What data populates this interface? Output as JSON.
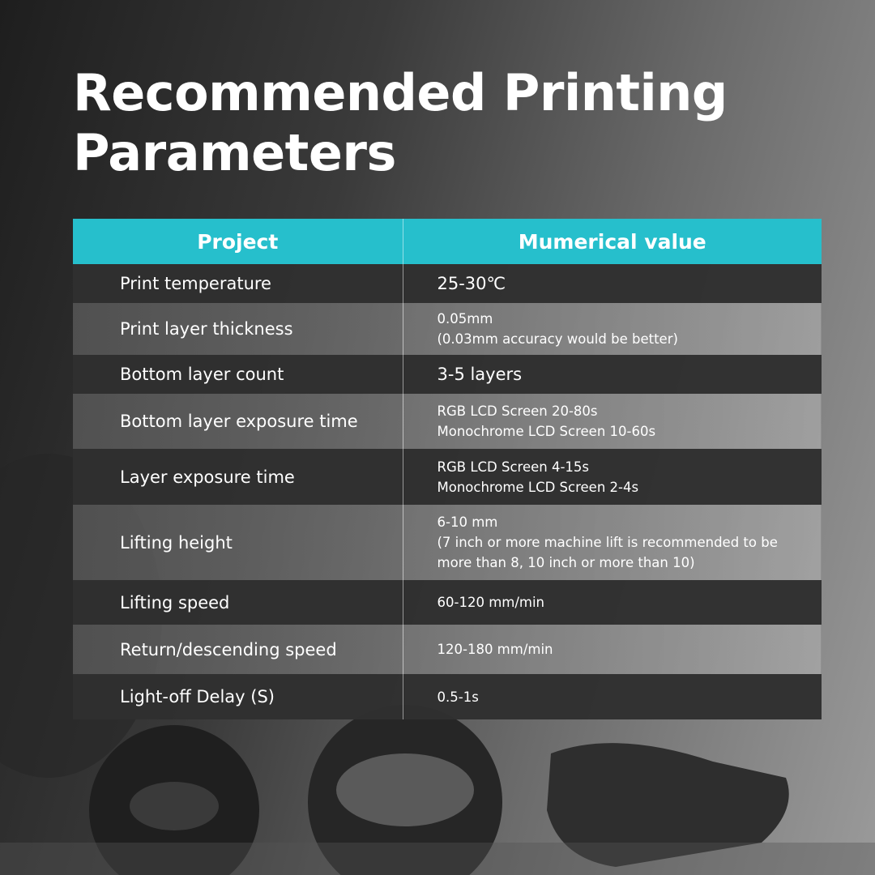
{
  "title": "Recommended Printing Parameters",
  "colors": {
    "header": "#26bfcc",
    "dark_row": "#303030"
  },
  "table": {
    "headers": [
      "Project",
      "Mumerical value"
    ],
    "rows": [
      {
        "key": "Print temperature",
        "lines": [
          "25-30℃"
        ]
      },
      {
        "key": "Print layer thickness",
        "lines": [
          "0.05mm",
          "(0.03mm accuracy would be better)"
        ]
      },
      {
        "key": "Bottom layer count",
        "lines": [
          "3-5 layers"
        ]
      },
      {
        "key": "Bottom layer exposure time",
        "lines": [
          "RGB LCD Screen 20-80s",
          "Monochrome LCD Screen 10-60s"
        ]
      },
      {
        "key": "Layer exposure time",
        "lines": [
          "RGB LCD Screen 4-15s",
          "Monochrome LCD Screen 2-4s"
        ]
      },
      {
        "key": "Lifting height",
        "lines": [
          "6-10 mm",
          "(7 inch or more machine lift is recommended to be",
          "more than 8, 10 inch or more than 10)"
        ]
      },
      {
        "key": "Lifting speed",
        "lines": [
          "60-120 mm/min"
        ]
      },
      {
        "key": "Return/descending speed",
        "lines": [
          "120-180 mm/min"
        ]
      },
      {
        "key": "Light-off Delay (S)",
        "lines": [
          "0.5-1s"
        ]
      }
    ]
  }
}
